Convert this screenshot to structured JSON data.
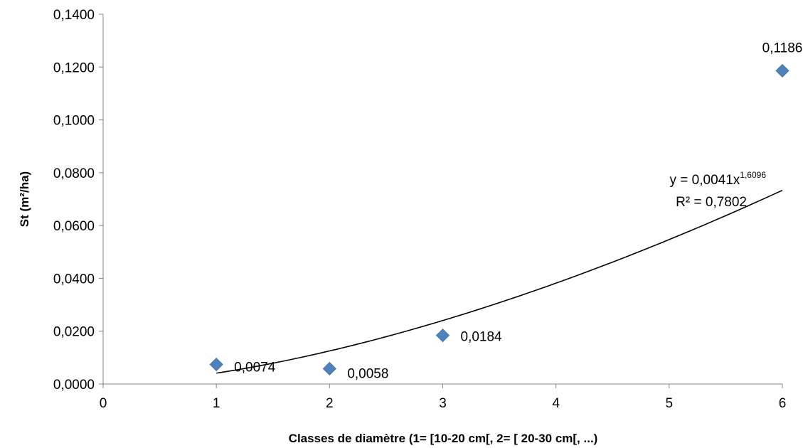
{
  "chart_data": {
    "type": "scatter",
    "xlabel": "Classes de diamètre (1= [10-20 cm[, 2= [ 20-30 cm[, ...)",
    "ylabel": "St (m²/ha)",
    "xlim": [
      0,
      6
    ],
    "ylim": [
      0,
      0.14
    ],
    "x_ticks": [
      "0",
      "1",
      "2",
      "3",
      "4",
      "5",
      "6"
    ],
    "y_ticks": [
      "0,0000",
      "0,0200",
      "0,0400",
      "0,0600",
      "0,0800",
      "0,1000",
      "0,1200",
      "0,1400"
    ],
    "grid": false,
    "legend": "none",
    "marker_color": "#4F81BD",
    "points": [
      {
        "x": 1,
        "y": 0.0074,
        "label": "0,0074"
      },
      {
        "x": 2,
        "y": 0.0058,
        "label": "0,0058"
      },
      {
        "x": 3,
        "y": 0.0184,
        "label": "0,0184"
      },
      {
        "x": 6,
        "y": 0.1186,
        "label": "0,1186"
      }
    ],
    "trendline": {
      "type": "power",
      "coefficient": 0.0041,
      "exponent": 1.6096,
      "x_range": [
        1,
        6
      ],
      "color": "#000000",
      "equation_prefix": "y = 0,0041x",
      "equation_exponent": "1,6096",
      "r_squared": "R² = 0,7802"
    }
  }
}
